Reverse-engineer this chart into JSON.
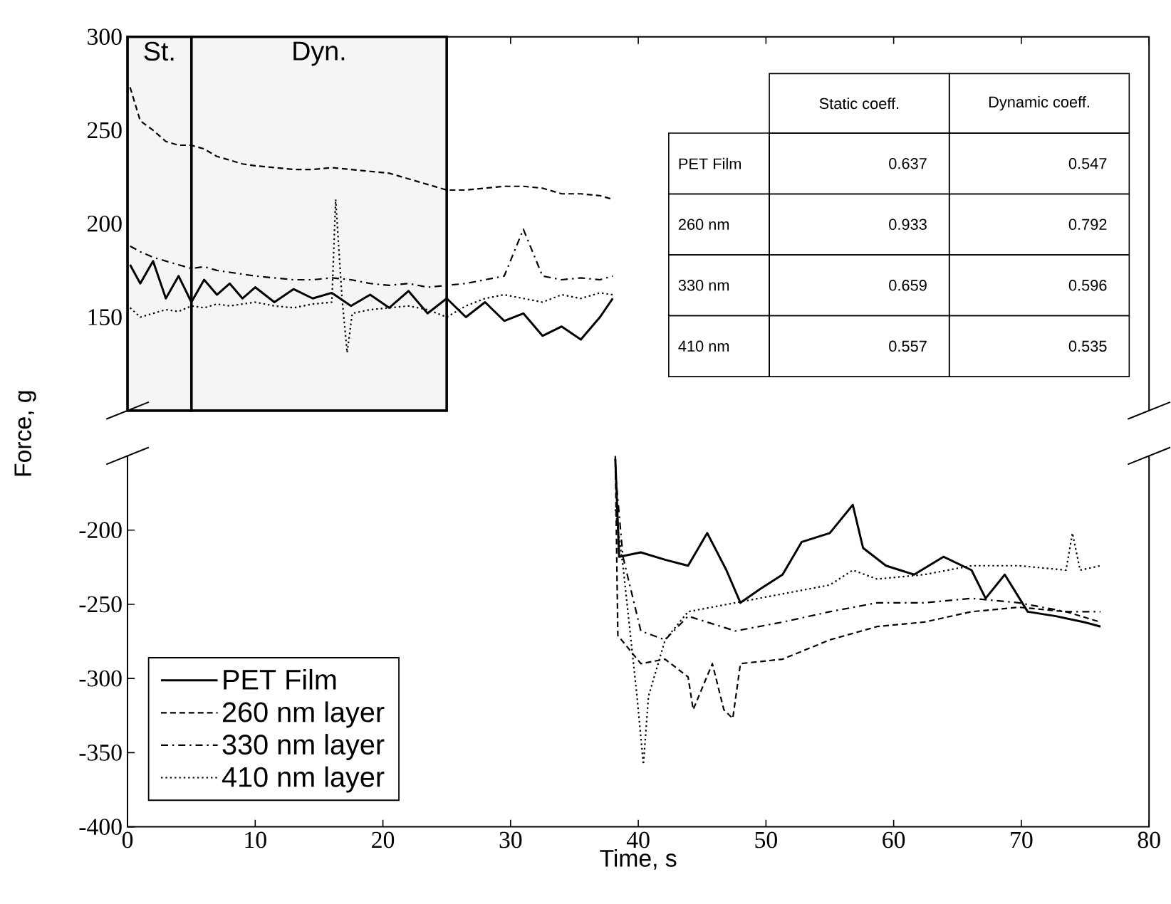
{
  "chart_data": [
    {
      "type": "line",
      "xlim": [
        0,
        80
      ],
      "xticks": [
        0,
        10,
        20,
        30,
        40,
        50,
        60,
        70,
        80
      ],
      "ylim": [
        100,
        300
      ],
      "yticks": [
        150,
        200,
        250,
        300
      ],
      "tick_labels": "y",
      "bands": [
        {
          "axis": "x",
          "from": 0,
          "to": 5,
          "label": "St."
        },
        {
          "axis": "x",
          "from": 5,
          "to": 25,
          "label": "Dyn."
        }
      ],
      "series": [
        {
          "color": "#000000",
          "line_style": "solid",
          "x": [
            0.2,
            1,
            2,
            3,
            4,
            5,
            6,
            7,
            8,
            9,
            10,
            11.5,
            13,
            14.5,
            16,
            17.5,
            19,
            20.5,
            22,
            23.5,
            25,
            26.5,
            28,
            29.5,
            31,
            32.5,
            34,
            35.5,
            37,
            38
          ],
          "values": [
            178,
            168,
            180,
            160,
            172,
            158,
            170,
            162,
            168,
            160,
            166,
            158,
            165,
            160,
            163,
            156,
            162,
            155,
            164,
            152,
            160,
            150,
            158,
            148,
            152,
            140,
            145,
            138,
            150,
            160
          ]
        },
        {
          "color": "#000000",
          "line_style": "dashed",
          "x": [
            0.2,
            1,
            2,
            3,
            4,
            5,
            6,
            7,
            8,
            9,
            10,
            11.5,
            13,
            14.5,
            16,
            17.5,
            19,
            20.5,
            22,
            23.5,
            25,
            26.5,
            28,
            29.5,
            31,
            32.5,
            34,
            35.5,
            37,
            38
          ],
          "values": [
            273,
            255,
            250,
            244,
            242,
            242,
            240,
            236,
            234,
            232,
            231,
            230,
            229,
            229,
            230,
            229,
            228,
            227,
            224,
            221,
            218,
            218,
            219,
            220,
            220,
            219,
            216,
            216,
            215,
            213
          ]
        },
        {
          "color": "#000000",
          "line_style": "dashdot",
          "x": [
            0.2,
            1,
            2,
            3,
            4,
            5,
            6,
            7,
            8,
            9,
            10,
            11.5,
            13,
            14.5,
            16,
            17.5,
            19,
            20.5,
            22,
            23.5,
            25,
            26.5,
            28,
            29.5,
            31,
            32.5,
            34,
            35.5,
            37,
            38
          ],
          "values": [
            188,
            185,
            182,
            180,
            178,
            176,
            177,
            175,
            174,
            173,
            172,
            171,
            170,
            170,
            171,
            170,
            168,
            167,
            168,
            166,
            167,
            168,
            170,
            172,
            197,
            172,
            170,
            171,
            170,
            172
          ]
        },
        {
          "color": "#000000",
          "line_style": "dotted",
          "x": [
            0.2,
            1,
            2,
            3,
            4,
            5,
            6,
            7,
            8,
            9,
            10,
            11.5,
            13,
            14.5,
            16,
            16.3,
            16.8,
            17.2,
            17.6,
            19,
            20.5,
            22,
            23.5,
            25,
            26.5,
            28,
            29.5,
            31,
            32.5,
            34,
            35.5,
            37,
            38
          ],
          "values": [
            155,
            150,
            152,
            154,
            153,
            156,
            155,
            157,
            156,
            157,
            158,
            156,
            155,
            157,
            158,
            213,
            160,
            131,
            152,
            154,
            155,
            156,
            154,
            150,
            156,
            160,
            162,
            160,
            158,
            162,
            160,
            163,
            162
          ]
        }
      ]
    },
    {
      "type": "other",
      "categories": [
        "Static coeff.",
        "Dynamic coeff."
      ],
      "data_labels": true,
      "series": [
        {
          "name": "PET Film",
          "values": [
            0.637,
            0.547
          ]
        },
        {
          "name": "260 nm",
          "values": [
            0.933,
            0.792
          ]
        },
        {
          "name": "330 nm",
          "values": [
            0.659,
            0.596
          ]
        },
        {
          "name": "410 nm",
          "values": [
            0.557,
            0.535
          ]
        }
      ]
    },
    {
      "type": "line",
      "xlabel": "Time, s",
      "ylabel": "Force, g",
      "xlim": [
        0,
        80
      ],
      "xticks": [
        0,
        10,
        20,
        30,
        40,
        50,
        60,
        70,
        80
      ],
      "ylim": [
        -400,
        -150
      ],
      "yticks": [
        -400,
        -350,
        -300,
        -250,
        -200
      ],
      "legend": "bottom left",
      "series": [
        {
          "name": "PET Film",
          "color": "#000000",
          "line_style": "solid",
          "x": [
            38.2,
            38.5,
            40.2,
            42.1,
            43.9,
            45.4,
            46.9,
            48.0,
            49.5,
            51.3,
            52.8,
            55.0,
            56.8,
            57.6,
            59.4,
            61.6,
            63.9,
            66.1,
            67.2,
            68.7,
            70.5,
            72.7,
            74.9,
            76.2
          ],
          "values": [
            -152,
            -218,
            -215,
            -220,
            -224,
            -202,
            -227,
            -249,
            -240,
            -230,
            -208,
            -202,
            -183,
            -212,
            -224,
            -230,
            -218,
            -227,
            -246,
            -230,
            -255,
            -258,
            -262,
            -265
          ]
        },
        {
          "name": "260 nm layer",
          "color": "#000000",
          "line_style": "dashed",
          "x": [
            38.2,
            38.4,
            40.2,
            42.1,
            43.9,
            44.3,
            45.8,
            46.7,
            47.4,
            48.0,
            51.3,
            55.0,
            58.7,
            62.4,
            66.1,
            69.8,
            73.5,
            76.2
          ],
          "values": [
            -150,
            -271,
            -290,
            -287,
            -299,
            -321,
            -290,
            -321,
            -327,
            -290,
            -287,
            -274,
            -265,
            -262,
            -255,
            -252,
            -255,
            -262
          ]
        },
        {
          "name": "330 nm layer",
          "color": "#000000",
          "line_style": "dashdot",
          "x": [
            38.2,
            38.8,
            40.2,
            42.1,
            43.9,
            47.6,
            51.3,
            55.0,
            58.7,
            62.4,
            66.1,
            69.8,
            73.5,
            76.2
          ],
          "values": [
            -160,
            -218,
            -268,
            -274,
            -258,
            -268,
            -262,
            -255,
            -249,
            -249,
            -246,
            -249,
            -255,
            -255
          ]
        },
        {
          "name": "410 nm layer",
          "color": "#000000",
          "line_style": "dotted",
          "x": [
            38.2,
            38.8,
            39.9,
            40.4,
            40.8,
            42.1,
            43.9,
            47.6,
            51.3,
            55.0,
            56.8,
            58.7,
            62.4,
            66.1,
            69.8,
            73.5,
            74.0,
            74.6,
            76.2
          ],
          "values": [
            -186,
            -224,
            -312,
            -358,
            -312,
            -274,
            -255,
            -249,
            -243,
            -237,
            -227,
            -233,
            -230,
            -224,
            -224,
            -227,
            -202,
            -227,
            -224
          ]
        }
      ]
    }
  ]
}
